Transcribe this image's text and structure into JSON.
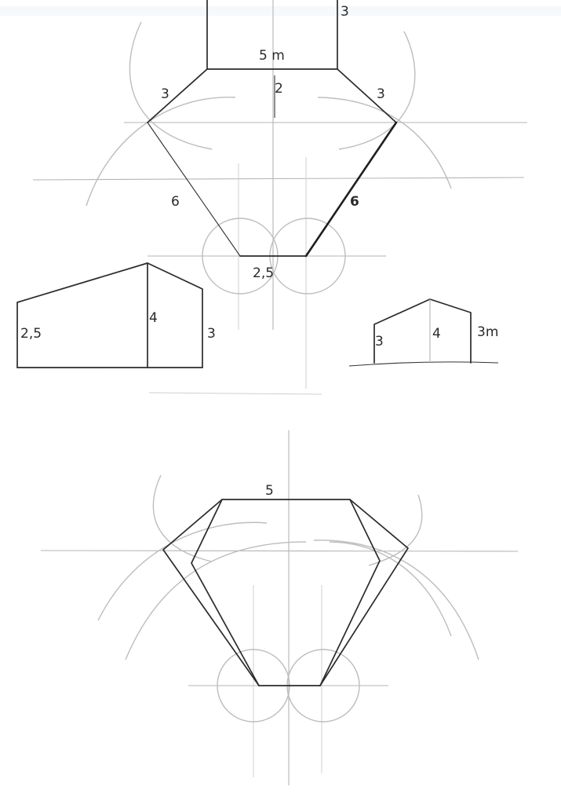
{
  "top_plan": {
    "label_top_right": "3",
    "label_top_edge": "5 m",
    "label_center": "2",
    "label_left_upper": "3",
    "label_right_upper": "3",
    "label_left_lower": "6",
    "label_right_lower": "6",
    "label_base": "2,5"
  },
  "left_elevation": {
    "label_left": "2,5",
    "label_middle": "4",
    "label_right": "3"
  },
  "right_elevation": {
    "label_left": "3",
    "label_middle": "4",
    "label_right": "3m"
  },
  "bottom_plan": {
    "label_top_edge": "5"
  }
}
